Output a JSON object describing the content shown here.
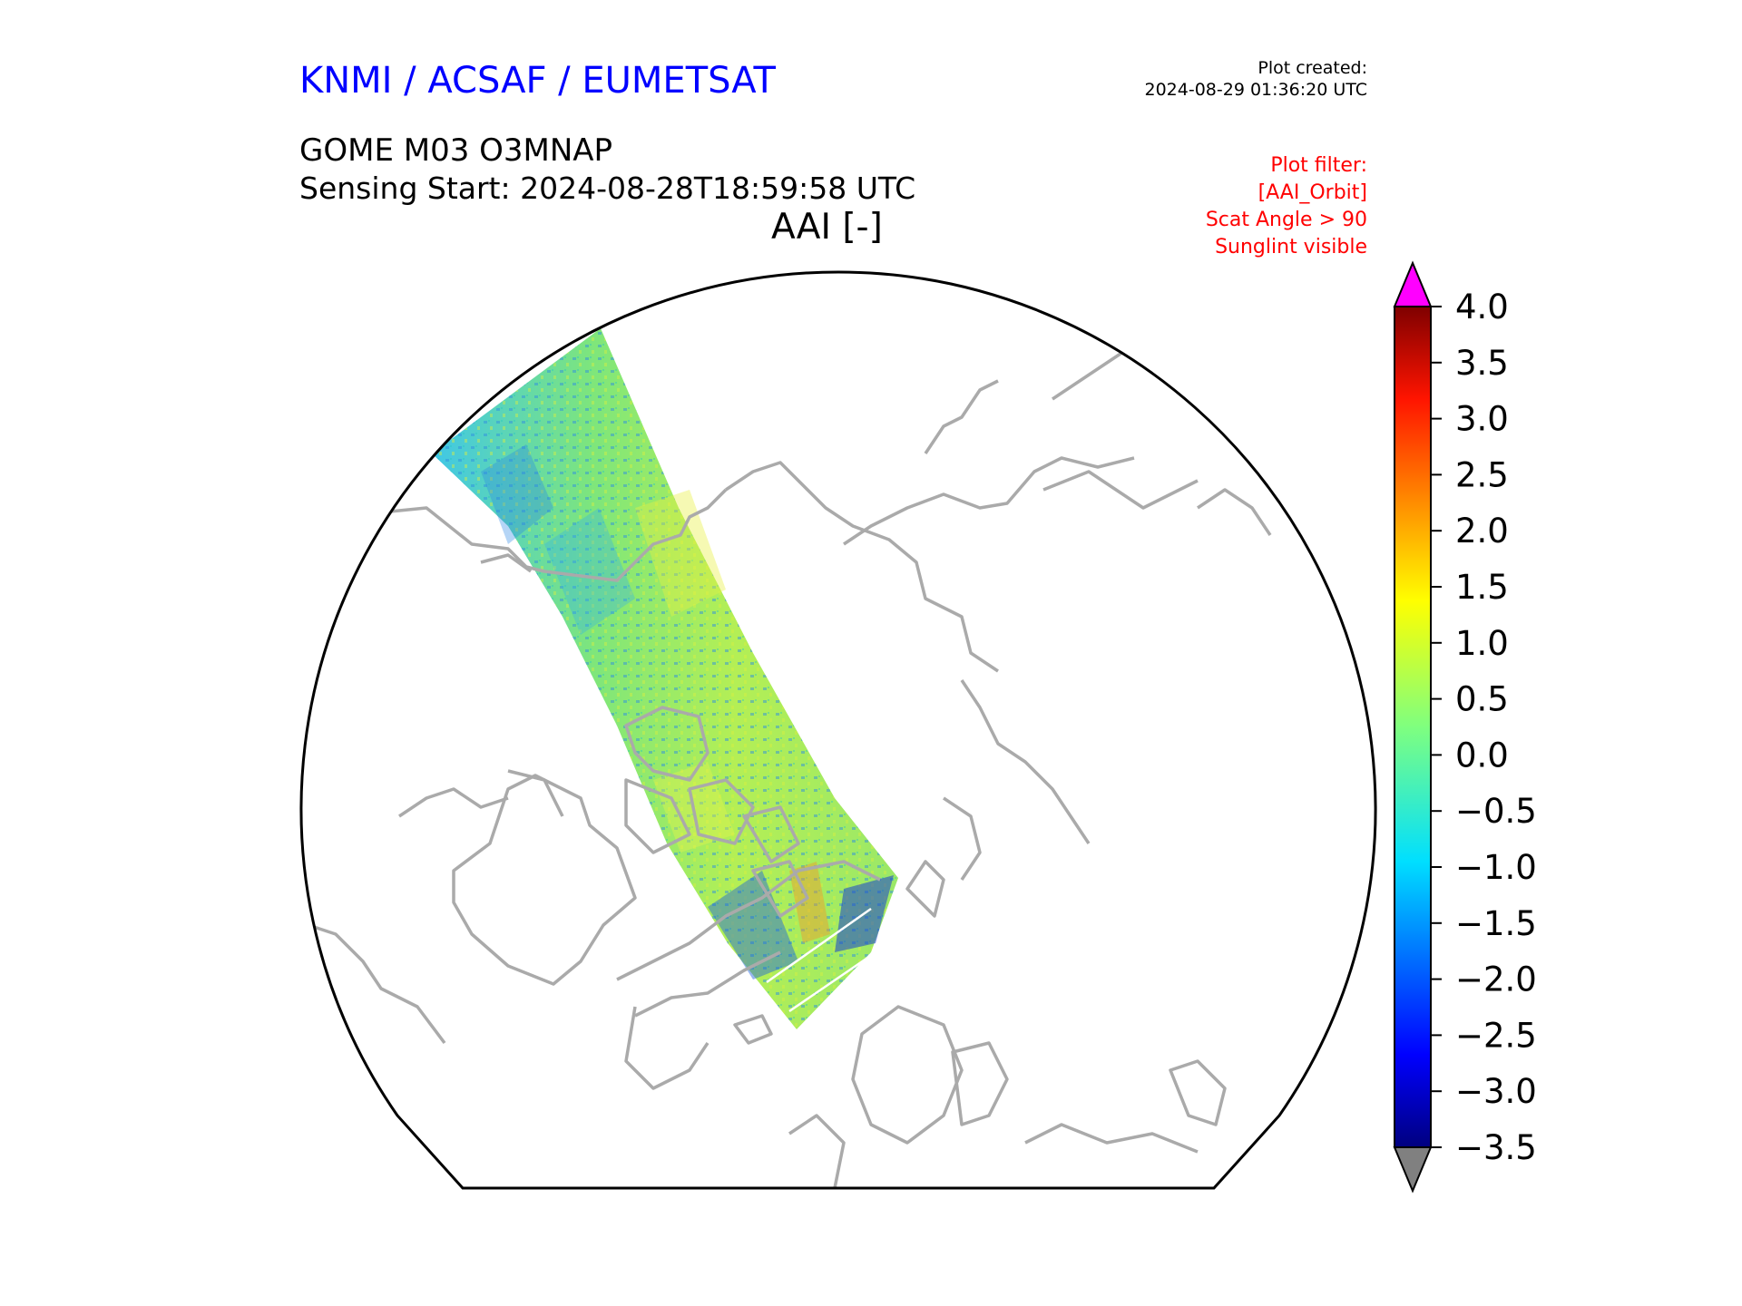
{
  "header": {
    "credit": "KNMI / ACSAF / EUMETSAT",
    "created_label": "Plot created:",
    "created_time": "2024-08-29 01:36:20 UTC",
    "product": "GOME M03 O3MNAP",
    "sensing": "Sensing Start: 2024-08-28T18:59:58 UTC",
    "map_title": "AAI [-]"
  },
  "filter": {
    "lines": [
      "Plot filter:",
      "[AAI_Orbit]",
      "Scat Angle > 90",
      "Sunglint visible"
    ]
  },
  "colorbar": {
    "min": -3.5,
    "max": 4.0,
    "ticks": [
      "4.0",
      "3.5",
      "3.0",
      "2.5",
      "2.0",
      "1.5",
      "1.0",
      "0.5",
      "0.0",
      "−0.5",
      "−1.0",
      "−1.5",
      "−2.0",
      "−2.5",
      "−3.0",
      "−3.5"
    ],
    "over_color": "#ff00ff",
    "under_color": "#808080",
    "colormap": "jet"
  },
  "map": {
    "projection": "north-polar-stereographic",
    "coastline_color": "#aaaaaa",
    "swath_dominant_values": "mostly -0.5 to 1.0"
  }
}
